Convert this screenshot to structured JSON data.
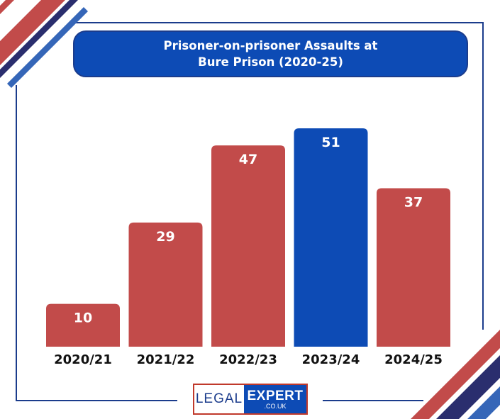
{
  "colors": {
    "bar_default": "#c24b4a",
    "bar_highlight": "#0d4bb5",
    "frame": "#1b3c8c",
    "corner_red": "#c24b4a",
    "corner_navy": "#2a2e6e",
    "corner_blue": "#3566b8"
  },
  "chart_data": {
    "type": "bar",
    "title": "Prisoner-on-prisoner Assaults at\nBure Prison (2020-25)",
    "categories": [
      "2020/21",
      "2021/22",
      "2022/23",
      "2023/24",
      "2024/25"
    ],
    "values": [
      10,
      29,
      47,
      51,
      37
    ],
    "highlight_index": 3,
    "xlabel": "",
    "ylabel": "",
    "grid": false,
    "ylim": [
      0,
      51
    ]
  },
  "logo": {
    "left_text": "LEGAL",
    "right_text": "EXPERT",
    "domain": ".CO.UK"
  }
}
